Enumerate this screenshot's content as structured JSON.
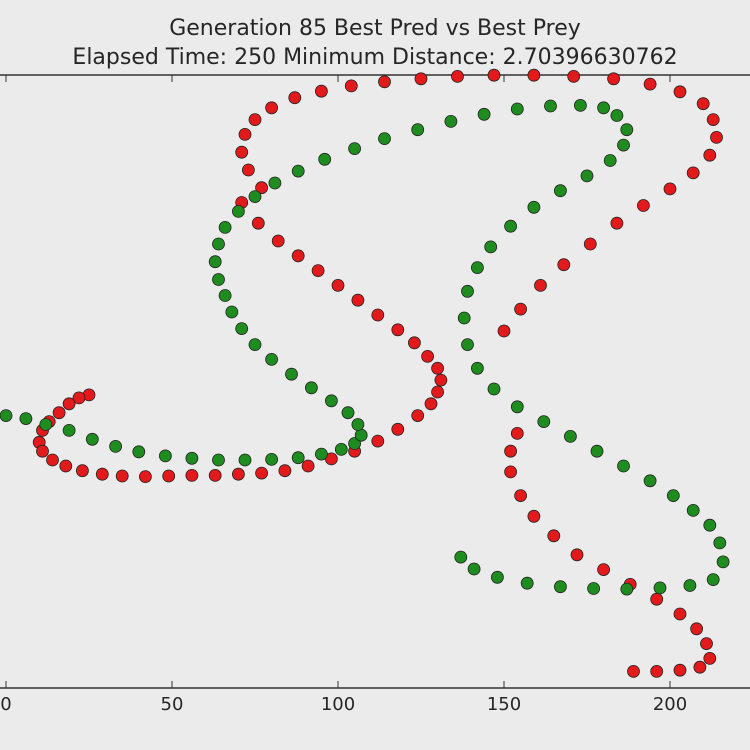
{
  "chart_data": {
    "type": "scatter",
    "title_line1": "Generation 85 Best Pred vs Best Prey",
    "title_line2": "Elapsed Time: 250 Minimum Distance: 2.70396630762",
    "xlabel": "",
    "ylabel": "",
    "xlim": [
      0,
      225
    ],
    "ylim": [
      0,
      100
    ],
    "x_ticks": [
      0,
      50,
      100,
      150,
      200
    ],
    "x_tick_labels": [
      "0",
      "50",
      "100",
      "150",
      "200"
    ],
    "grid": false,
    "series": [
      {
        "color": "#e31a1c",
        "x": [
          25,
          22,
          19,
          16,
          13,
          11,
          10,
          11,
          14,
          18,
          23,
          29,
          35,
          42,
          49,
          56,
          63,
          70,
          77,
          84,
          91,
          98,
          105,
          112,
          118,
          124,
          128,
          130,
          131,
          130,
          127,
          123,
          118,
          112,
          106,
          100,
          94,
          88,
          82,
          76,
          71,
          77,
          73,
          71,
          72,
          75,
          80,
          87,
          95,
          104,
          114,
          125,
          136,
          147,
          159,
          171,
          183,
          194,
          203,
          210,
          213,
          214,
          212,
          207,
          200,
          192,
          184,
          176,
          168,
          161,
          155,
          150,
          154,
          152,
          152,
          155,
          159,
          165,
          172,
          180,
          188,
          196,
          203,
          208,
          211,
          212,
          209,
          203,
          196,
          189
        ],
        "y": [
          49,
          48.5,
          47.5,
          46,
          44.5,
          43,
          41,
          39.5,
          38,
          37,
          36.2,
          35.6,
          35.3,
          35.2,
          35.3,
          35.4,
          35.4,
          35.6,
          35.8,
          36.2,
          37,
          38.2,
          39.5,
          41.2,
          43.2,
          45.5,
          47.5,
          49.5,
          51.5,
          53.5,
          55.5,
          57.8,
          60,
          62.5,
          65,
          67.5,
          70,
          72.5,
          75,
          78,
          81.5,
          84,
          87,
          90,
          93,
          95.5,
          97.5,
          99.2,
          100.3,
          101.2,
          101.9,
          102.4,
          102.8,
          103,
          103,
          102.8,
          102.4,
          101.5,
          100.2,
          98.2,
          95.5,
          92.5,
          89.5,
          86.5,
          83.8,
          81,
          78,
          74.5,
          71,
          67.5,
          63.5,
          59.8,
          42.5,
          39.5,
          36,
          32,
          28.5,
          25.2,
          22,
          19.5,
          17,
          14.5,
          12,
          9.5,
          7,
          4.5,
          3,
          2.5,
          2.3,
          2.3
        ]
      },
      {
        "color": "#1e8c1e",
        "x": [
          0,
          6,
          12,
          19,
          26,
          33,
          40,
          48,
          56,
          64,
          72,
          80,
          88,
          95,
          101,
          105,
          107,
          106,
          103,
          98,
          92,
          86,
          80,
          75,
          71,
          68,
          66,
          64,
          63,
          64,
          66,
          70,
          75,
          81,
          88,
          96,
          105,
          114,
          124,
          134,
          144,
          154,
          164,
          173,
          180,
          184,
          187,
          186,
          182,
          175,
          167,
          159,
          152,
          146,
          142,
          139,
          138,
          139,
          142,
          147,
          154,
          162,
          170,
          178,
          186,
          194,
          201,
          207,
          212,
          215,
          216,
          213,
          206,
          197,
          187,
          177,
          167,
          157,
          148,
          141,
          137
        ],
        "y": [
          45.5,
          45,
          44,
          43,
          41.5,
          40.3,
          39.4,
          38.7,
          38.3,
          38,
          38,
          38.1,
          38.4,
          39,
          39.8,
          40.8,
          42.2,
          44,
          46,
          48,
          50.2,
          52.5,
          55,
          57.5,
          60.2,
          63,
          65.8,
          68.5,
          71.5,
          74.5,
          77.3,
          80,
          82.5,
          84.8,
          86.8,
          88.8,
          90.6,
          92.3,
          93.8,
          95.2,
          96.4,
          97.3,
          97.8,
          97.9,
          97.5,
          96.2,
          93.8,
          91.2,
          88.6,
          86,
          83.5,
          80.7,
          77.5,
          74,
          70.5,
          66.5,
          62,
          57.5,
          53.5,
          50,
          47,
          44.5,
          42,
          39.5,
          37,
          34.5,
          32,
          29.5,
          27,
          24,
          20.8,
          17.8,
          16.8,
          16.4,
          16.2,
          16.3,
          16.6,
          17.2,
          18.2,
          19.6,
          21.6
        ]
      }
    ]
  }
}
